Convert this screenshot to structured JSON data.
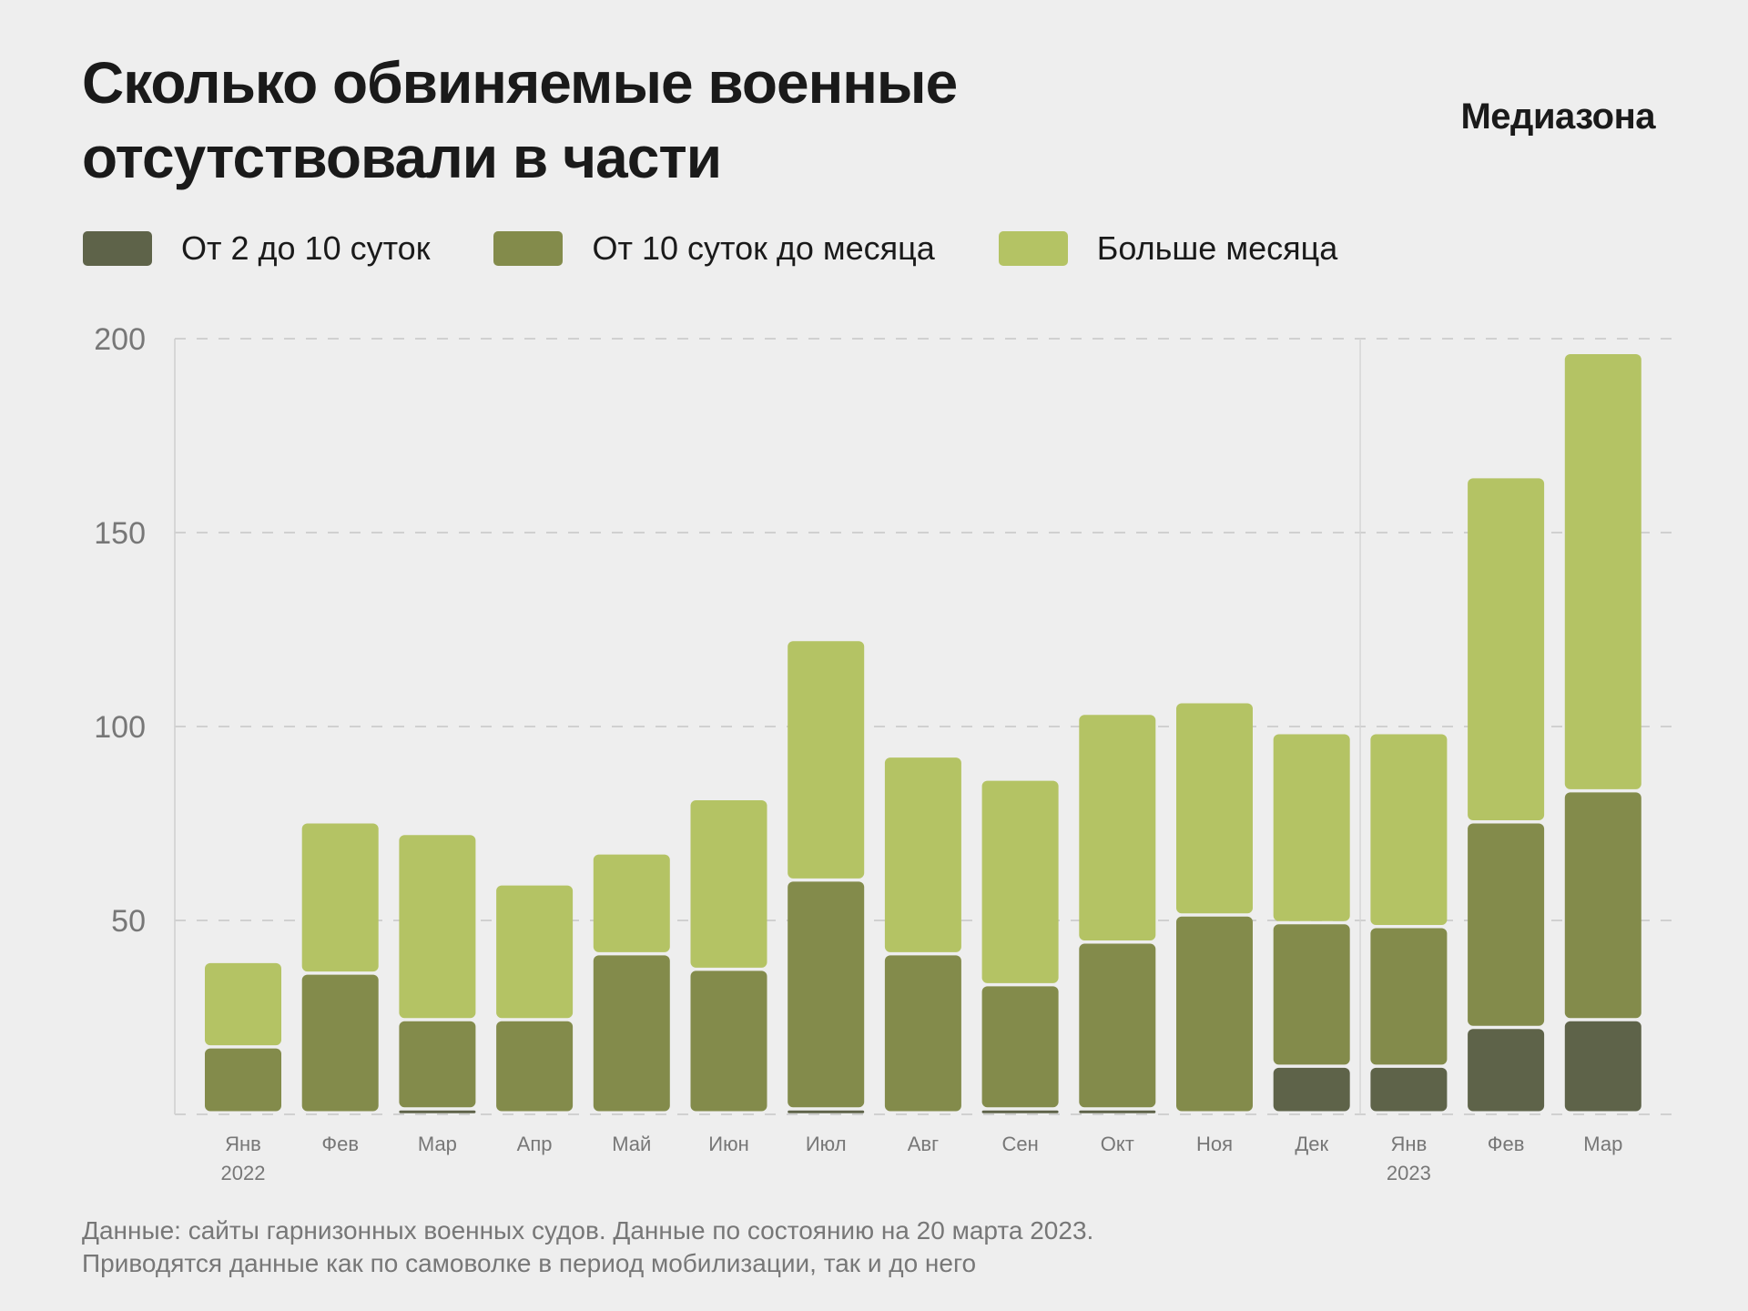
{
  "header": {
    "title_line1": "Сколько обвиняемые военные",
    "title_line2": "отсутствовали в части",
    "logo": "Медиазона"
  },
  "footer": {
    "line1": "Данные: сайты гарнизонных военных судов. Данные по состоянию на 20 марта 2023.",
    "line2": "Приводятся данные как по самоволке в период мобилизации, так и до него"
  },
  "chart_data": {
    "type": "bar",
    "stacked": true,
    "title": "Сколько обвиняемые военные отсутствовали в части",
    "xlabel": "",
    "ylabel": "",
    "ylim": [
      0,
      200
    ],
    "yticks": [
      50,
      100,
      150,
      200
    ],
    "grid": true,
    "legend_position": "top-left",
    "categories": [
      "Янв",
      "Фев",
      "Мар",
      "Апр",
      "Май",
      "Июн",
      "Июл",
      "Авг",
      "Сен",
      "Окт",
      "Ноя",
      "Дек",
      "Янв",
      "Фев",
      "Мар"
    ],
    "category_sublabels": [
      "2022",
      "",
      "",
      "",
      "",
      "",
      "",
      "",
      "",
      "",
      "",
      "",
      "2023",
      "",
      ""
    ],
    "series": [
      {
        "name": "От 2 до 10 суток",
        "color": "#5e6349",
        "values": [
          0,
          0,
          1,
          0,
          0,
          0,
          1,
          0,
          1,
          1,
          0,
          12,
          12,
          22,
          24
        ]
      },
      {
        "name": "От 10 суток до месяца",
        "color": "#838b4b",
        "values": [
          17,
          36,
          23,
          24,
          41,
          37,
          59,
          41,
          32,
          43,
          51,
          37,
          36,
          53,
          59
        ]
      },
      {
        "name": "Больше месяца",
        "color": "#b4c364",
        "values": [
          22,
          39,
          48,
          35,
          26,
          44,
          62,
          51,
          53,
          59,
          55,
          49,
          50,
          89,
          113
        ]
      }
    ]
  }
}
